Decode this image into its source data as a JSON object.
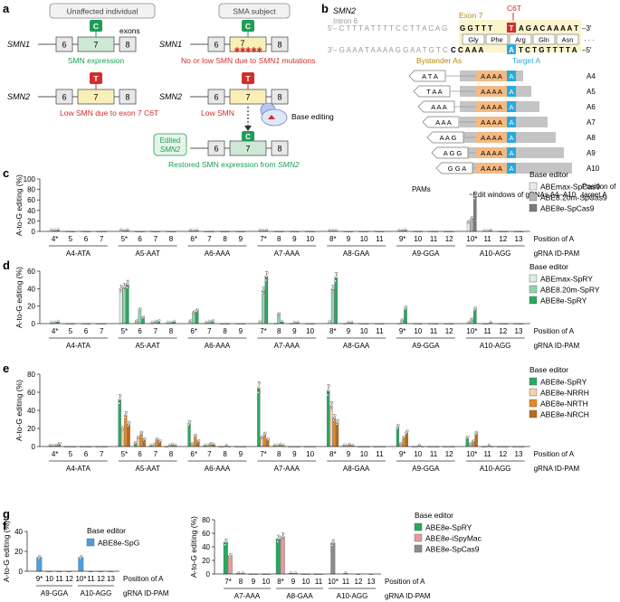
{
  "panel_a": {
    "letter": "a",
    "unaffected": "Unaffected individual",
    "sma": "SMA subject",
    "smn1": "SMN1",
    "smn2": "SMN2",
    "exons_word": "exons",
    "ex6": "6",
    "ex7": "7",
    "ex8": "8",
    "c": "C",
    "t": "T",
    "smn_expr": "SMN expression",
    "no_low": "No or low SMN due to",
    "no_low_gene": "SMN1",
    "no_low_tail": "mutations",
    "low_c6t": "Low SMN due to exon 7",
    "c6t": "C6T",
    "low_smn": "Low SMN",
    "base_editing": "Base editing",
    "edited": "Edited",
    "edited_gene": "SMN2",
    "restored": "Restored SMN expression from",
    "restored_gene": "SMN2",
    "colors": {
      "exon7_green": "#cde8d4",
      "exon7_yellow": "#fbefb8",
      "green": "#1e9e55",
      "red": "#d12e2e"
    }
  },
  "panel_b": {
    "letter": "b",
    "gene": "SMN2",
    "intron": "Intron 6",
    "exon": "Exon 7",
    "c6t": "C6T",
    "top_prefix": "5′– C T T T A T T T T C C T T A C A G",
    "top_exon": "G G T T T",
    "top_t": "T",
    "top_rest": "A G A C A A A A T",
    "top_end": "–3′",
    "bot_prefix": "3′– G A A A T A A A A G G A A T G T C",
    "bot_exon": "C C A A A",
    "bot_a": "A",
    "bot_rest": "T C T G T T T T A",
    "bot_end": "–5′",
    "aa": [
      "Gly",
      "Phe",
      "Arg",
      "Gln",
      "Asn"
    ],
    "bystander": "Bystander As",
    "target": "Target A",
    "grnas": [
      {
        "pam": "A T A",
        "aaaa": "A A A A",
        "target": "A",
        "name": "A4"
      },
      {
        "pam": "T A A",
        "aaaa": "A A A A",
        "target": "A",
        "name": "A5"
      },
      {
        "pam": "A A A",
        "aaaa": "A A A A",
        "target": "A",
        "name": "A6"
      },
      {
        "pam": "A A A",
        "aaaa": "A A A A",
        "target": "A",
        "name": "A7"
      },
      {
        "pam": "A A G",
        "aaaa": "A A A A",
        "target": "A",
        "name": "A8"
      },
      {
        "pam": "A G G",
        "aaaa": "A A A A",
        "target": "A",
        "name": "A9"
      },
      {
        "pam": "G G A",
        "aaaa": "A A A A",
        "target": "A",
        "name": "A10"
      }
    ],
    "pams_label": "PAMs",
    "windows_label": "~Edit windows of gRNAs A4–A10",
    "position_label1": "Position of",
    "position_label2": "target A",
    "dots": "· · ·"
  },
  "ylabel": "A-to-G editing (%)",
  "pos_label": "Position of A",
  "grna_label": "gRNA ID-PAM",
  "legend_title": "Base editor",
  "panel_c": {
    "letter": "c",
    "ylim": [
      0,
      100
    ],
    "yticks": [
      "0",
      "20",
      "40",
      "60",
      "80",
      "100"
    ],
    "series": [
      {
        "name": "ABEmax-SpCas9",
        "color": "#ebebeb"
      },
      {
        "name": "ABE8.20m-SpCas9",
        "color": "#b5b5b5"
      },
      {
        "name": "ABE8e-SpCas9",
        "color": "#7a7a7a"
      }
    ],
    "groups": [
      {
        "label": "A4-ATA",
        "positions": [
          "4*",
          "5",
          "6",
          "7"
        ],
        "values": [
          [
            2,
            1.5,
            2.5
          ],
          [
            0,
            0,
            0
          ],
          [
            0,
            0,
            0
          ],
          [
            0,
            0,
            0
          ]
        ]
      },
      {
        "label": "A5-AAT",
        "positions": [
          "5*",
          "6",
          "7",
          "8"
        ],
        "values": [
          [
            2,
            1,
            2
          ],
          [
            0,
            0,
            0
          ],
          [
            0,
            0,
            0
          ],
          [
            0,
            0,
            0
          ]
        ]
      },
      {
        "label": "A6-AAA",
        "positions": [
          "6*",
          "7",
          "8",
          "9"
        ],
        "values": [
          [
            1.5,
            1,
            1.5
          ],
          [
            0,
            0,
            0
          ],
          [
            0,
            0,
            0
          ],
          [
            0,
            0,
            0
          ]
        ]
      },
      {
        "label": "A7-AAA",
        "positions": [
          "7*",
          "8",
          "9",
          "10"
        ],
        "values": [
          [
            1.5,
            1,
            1.5
          ],
          [
            0,
            0,
            0
          ],
          [
            0,
            0,
            0
          ],
          [
            0,
            0,
            0
          ]
        ]
      },
      {
        "label": "A8-GAA",
        "positions": [
          "8*",
          "9",
          "10",
          "11"
        ],
        "values": [
          [
            1,
            1,
            1
          ],
          [
            0,
            0,
            0
          ],
          [
            0,
            0,
            0
          ],
          [
            0,
            0,
            0
          ]
        ]
      },
      {
        "label": "A9-GGA",
        "positions": [
          "9*",
          "10",
          "11",
          "12"
        ],
        "values": [
          [
            1,
            1.5,
            2
          ],
          [
            0,
            0,
            0
          ],
          [
            0,
            0,
            0
          ],
          [
            0,
            0,
            0
          ]
        ]
      },
      {
        "label": "A10-AGG",
        "positions": [
          "10*",
          "11",
          "12",
          "13"
        ],
        "values": [
          [
            18,
            25,
            68
          ],
          [
            0.5,
            0.5,
            1.5
          ],
          [
            0,
            0,
            0
          ],
          [
            0,
            0,
            0
          ]
        ]
      }
    ]
  },
  "panel_d": {
    "letter": "d",
    "ylim": [
      0,
      60
    ],
    "yticks": [
      "0",
      "20",
      "40",
      "60"
    ],
    "series": [
      {
        "name": "ABEmax-SpRY",
        "color": "#d6f0e1"
      },
      {
        "name": "ABE8.20m-SpRY",
        "color": "#8fd6ac"
      },
      {
        "name": "ABE8e-SpRY",
        "color": "#28a860"
      }
    ],
    "groups": [
      {
        "label": "A4-ATA",
        "positions": [
          "4*",
          "5",
          "6",
          "7"
        ],
        "values": [
          [
            1,
            1,
            2
          ],
          [
            0,
            0,
            0
          ],
          [
            0,
            0,
            0
          ],
          [
            0,
            0,
            0
          ]
        ]
      },
      {
        "label": "A5-AAT",
        "positions": [
          "5*",
          "6",
          "7",
          "8"
        ],
        "values": [
          [
            40,
            42,
            45
          ],
          [
            3,
            16,
            7
          ],
          [
            1,
            2,
            3
          ],
          [
            1,
            1,
            2
          ]
        ]
      },
      {
        "label": "A6-AAA",
        "positions": [
          "6*",
          "7",
          "8",
          "9"
        ],
        "values": [
          [
            3,
            13,
            15
          ],
          [
            1,
            2,
            3
          ],
          [
            0,
            0,
            0
          ],
          [
            0,
            0,
            0
          ]
        ]
      },
      {
        "label": "A7-AAA",
        "positions": [
          "7*",
          "8",
          "9",
          "10"
        ],
        "values": [
          [
            2,
            38,
            54
          ],
          [
            0,
            11,
            2
          ],
          [
            0,
            1,
            1
          ],
          [
            0,
            0,
            0
          ]
        ]
      },
      {
        "label": "A8-GAA",
        "positions": [
          "8*",
          "9",
          "10",
          "11"
        ],
        "values": [
          [
            2,
            40,
            53
          ],
          [
            0,
            1,
            1
          ],
          [
            0,
            0,
            0
          ],
          [
            0,
            0,
            0
          ]
        ]
      },
      {
        "label": "A9-GGA",
        "positions": [
          "9*",
          "10",
          "11",
          "12"
        ],
        "values": [
          [
            0,
            4,
            18
          ],
          [
            0,
            0,
            0
          ],
          [
            0,
            0,
            0
          ],
          [
            0,
            0,
            0
          ]
        ]
      },
      {
        "label": "A10-AGG",
        "positions": [
          "10*",
          "11",
          "12",
          "13"
        ],
        "values": [
          [
            1,
            5,
            17
          ],
          [
            0,
            0,
            1
          ],
          [
            0,
            0,
            0
          ],
          [
            0,
            0,
            0
          ]
        ]
      }
    ]
  },
  "panel_e": {
    "letter": "e",
    "ylim": [
      0,
      80
    ],
    "yticks": [
      "0",
      "20",
      "40",
      "60",
      "80"
    ],
    "series": [
      {
        "name": "ABE8e-SpRY",
        "color": "#28a860"
      },
      {
        "name": "ABE8e-NRRH",
        "color": "#f6d3a8"
      },
      {
        "name": "ABE8e-NRTH",
        "color": "#e88a1e"
      },
      {
        "name": "ABE8e-NRCH",
        "color": "#b86a1e"
      }
    ],
    "groups": [
      {
        "label": "A4-ATA",
        "positions": [
          "4*",
          "5",
          "6",
          "7"
        ],
        "values": [
          [
            1,
            0.5,
            1,
            3
          ],
          [
            0,
            0,
            0,
            0
          ],
          [
            0,
            0,
            0,
            0
          ],
          [
            0,
            0,
            0,
            0
          ]
        ]
      },
      {
        "label": "A5-AAT",
        "positions": [
          "5*",
          "6",
          "7",
          "8"
        ],
        "values": [
          [
            52,
            20,
            35,
            25
          ],
          [
            4,
            10,
            15,
            8
          ],
          [
            1,
            2,
            8,
            6
          ],
          [
            0,
            1,
            2,
            1
          ]
        ]
      },
      {
        "label": "A6-AAA",
        "positions": [
          "6*",
          "7",
          "8",
          "9"
        ],
        "values": [
          [
            26,
            3,
            12,
            6
          ],
          [
            1,
            1,
            3,
            2
          ],
          [
            0,
            0,
            1,
            0
          ],
          [
            0,
            0,
            0,
            0
          ]
        ]
      },
      {
        "label": "A7-AAA",
        "positions": [
          "7*",
          "8",
          "9",
          "10"
        ],
        "values": [
          [
            65,
            10,
            14,
            8
          ],
          [
            1,
            1,
            2,
            1
          ],
          [
            0,
            0,
            0,
            0
          ],
          [
            0,
            0,
            0,
            0
          ]
        ]
      },
      {
        "label": "A8-GAA",
        "positions": [
          "8*",
          "9",
          "10",
          "11"
        ],
        "values": [
          [
            62,
            45,
            32,
            27
          ],
          [
            1,
            1,
            2,
            1
          ],
          [
            0,
            0,
            0,
            0
          ],
          [
            0,
            0,
            0,
            0
          ]
        ]
      },
      {
        "label": "A9-GGA",
        "positions": [
          "9*",
          "10",
          "11",
          "12"
        ],
        "values": [
          [
            22,
            3,
            10,
            16
          ],
          [
            0,
            0,
            1,
            0
          ],
          [
            0,
            0,
            0,
            0
          ],
          [
            0,
            0,
            0,
            0
          ]
        ]
      },
      {
        "label": "A10-AGG",
        "positions": [
          "10*",
          "11",
          "12",
          "13"
        ],
        "values": [
          [
            10,
            3,
            6,
            15
          ],
          [
            0,
            0,
            1,
            0
          ],
          [
            0,
            0,
            0,
            0
          ],
          [
            0,
            0,
            0,
            0
          ]
        ]
      }
    ]
  },
  "panel_f": {
    "letter": "f",
    "ylim": [
      0,
      40
    ],
    "yticks": [
      "0",
      "20",
      "40"
    ],
    "series": [
      {
        "name": "ABE8e-SpG",
        "color": "#4a9fe0"
      }
    ],
    "groups": [
      {
        "label": "A9-GGA",
        "positions": [
          "9*",
          "10",
          "11",
          "12"
        ],
        "values": [
          [
            14
          ],
          [
            0
          ],
          [
            0
          ],
          [
            0
          ]
        ]
      },
      {
        "label": "A10-AGG",
        "positions": [
          "10*",
          "11",
          "12",
          "13"
        ],
        "values": [
          [
            14
          ],
          [
            0
          ],
          [
            0
          ],
          [
            0
          ]
        ]
      }
    ]
  },
  "panel_g": {
    "letter": "g",
    "ylim": [
      0,
      80
    ],
    "yticks": [
      "0",
      "20",
      "40",
      "60",
      "80"
    ],
    "series": [
      {
        "name": "ABE8e-SpRY",
        "color": "#28a860"
      },
      {
        "name": "ABE8e-iSpyMac",
        "color": "#e79aa0"
      },
      {
        "name": "ABE8e-SpCas9",
        "color": "#8c8c8c"
      }
    ],
    "groups": [
      {
        "label": "A7-AAA",
        "positions": [
          "7*",
          "8",
          "9",
          "10"
        ],
        "values": [
          [
            47,
            27,
            null
          ],
          [
            1,
            1,
            null
          ],
          [
            0,
            0,
            null
          ],
          [
            0,
            0,
            null
          ]
        ]
      },
      {
        "label": "A8-GAA",
        "positions": [
          "8*",
          "9",
          "10",
          "11"
        ],
        "values": [
          [
            52,
            55,
            null
          ],
          [
            1,
            1,
            null
          ],
          [
            0,
            0,
            null
          ],
          [
            0,
            0,
            null
          ]
        ]
      },
      {
        "label": "A10-AGG",
        "positions": [
          "10*",
          "11",
          "12",
          "13"
        ],
        "values": [
          [
            null,
            null,
            46
          ],
          [
            null,
            null,
            1
          ],
          [
            null,
            null,
            0
          ],
          [
            null,
            null,
            0
          ]
        ]
      }
    ]
  }
}
